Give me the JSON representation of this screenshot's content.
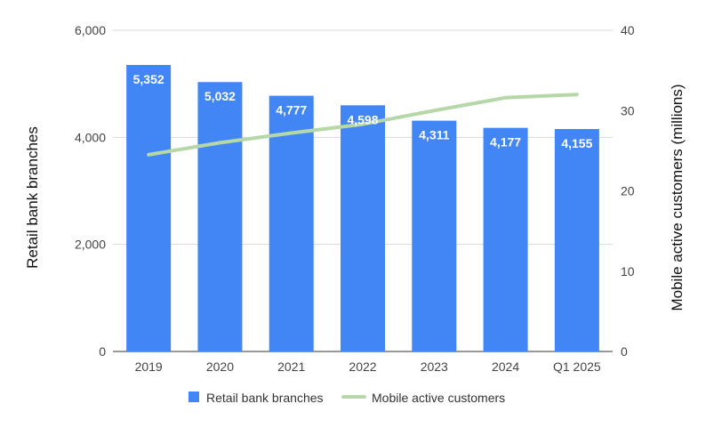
{
  "chart_data": {
    "type": "bar",
    "categories": [
      "2019",
      "2020",
      "2021",
      "2022",
      "2023",
      "2024",
      "Q1 2025"
    ],
    "series": [
      {
        "name": "Retail bank branches",
        "type": "bar",
        "axis": "left",
        "color": "#4285f4",
        "values": [
          5352,
          5032,
          4777,
          4598,
          4311,
          4177,
          4155
        ],
        "labels": [
          "5,352",
          "5,032",
          "4,777",
          "4,598",
          "4,311",
          "4,177",
          "4,155"
        ]
      },
      {
        "name": "Mobile active customers",
        "type": "line",
        "axis": "right",
        "color": "#b6d7a8",
        "values": [
          24.5,
          26.0,
          27.2,
          28.3,
          30.0,
          31.6,
          32.0
        ]
      }
    ],
    "ylabel": "Retail bank branches",
    "y2label": "Mobile active customers (millions)",
    "ylim": [
      0,
      6000
    ],
    "y2lim": [
      0,
      40
    ],
    "yticks": [
      0,
      2000,
      4000,
      6000
    ],
    "ytick_labels": [
      "0",
      "2,000",
      "4,000",
      "6,000"
    ],
    "y2ticks": [
      0,
      10,
      20,
      30,
      40
    ],
    "y2tick_labels": [
      "0",
      "10",
      "20",
      "30",
      "40"
    ],
    "grid": true,
    "legend": "bottom"
  }
}
